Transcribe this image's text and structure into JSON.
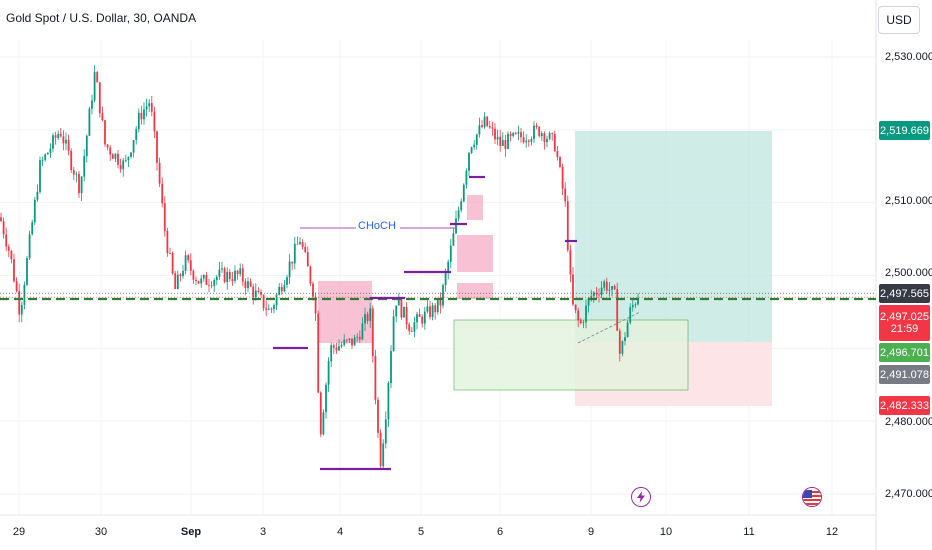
{
  "header": {
    "title": "Gold Spot / U.S. Dollar, 30, OANDA",
    "currency": "USD"
  },
  "chart_data": {
    "type": "candlestick",
    "instrument": "Gold Spot / U.S. Dollar",
    "timeframe": "30",
    "source": "OANDA",
    "ylim": [
      2468,
      2532
    ],
    "y_ticks": [
      "2,530.000",
      "2,510.000",
      "2,500.000",
      "2,480.000",
      "2,470.000"
    ],
    "x_ticks": [
      "29",
      "30",
      "Sep",
      "3",
      "4",
      "5",
      "6",
      "9",
      "10",
      "11",
      "12"
    ],
    "price_badges": [
      {
        "label": "2,519.669",
        "value": 2519.669,
        "color": "#089981"
      },
      {
        "label": "2,497.565",
        "value": 2497.565,
        "color": "#363a45"
      },
      {
        "label": "2,497.025",
        "sub": "21:59",
        "value": 2497.025,
        "color": "#f23645"
      },
      {
        "label": "2,496.701",
        "value": 2496.701,
        "color": "#4caf50"
      },
      {
        "label": "2,491.078",
        "value": 2491.078,
        "color": "#787b86"
      },
      {
        "label": "2,482.333",
        "value": 2482.333,
        "color": "#f23645"
      }
    ],
    "annotations": [
      {
        "label": "CHoCH"
      }
    ],
    "colors": {
      "up": "#089981",
      "down": "#f23645",
      "target_zone": "#bfe5df",
      "stop_zone": "#fde1e4",
      "dashed_line": "#2e7d32"
    }
  },
  "icons": {
    "flash": "lightning-icon",
    "flag": "us-flag-icon"
  }
}
